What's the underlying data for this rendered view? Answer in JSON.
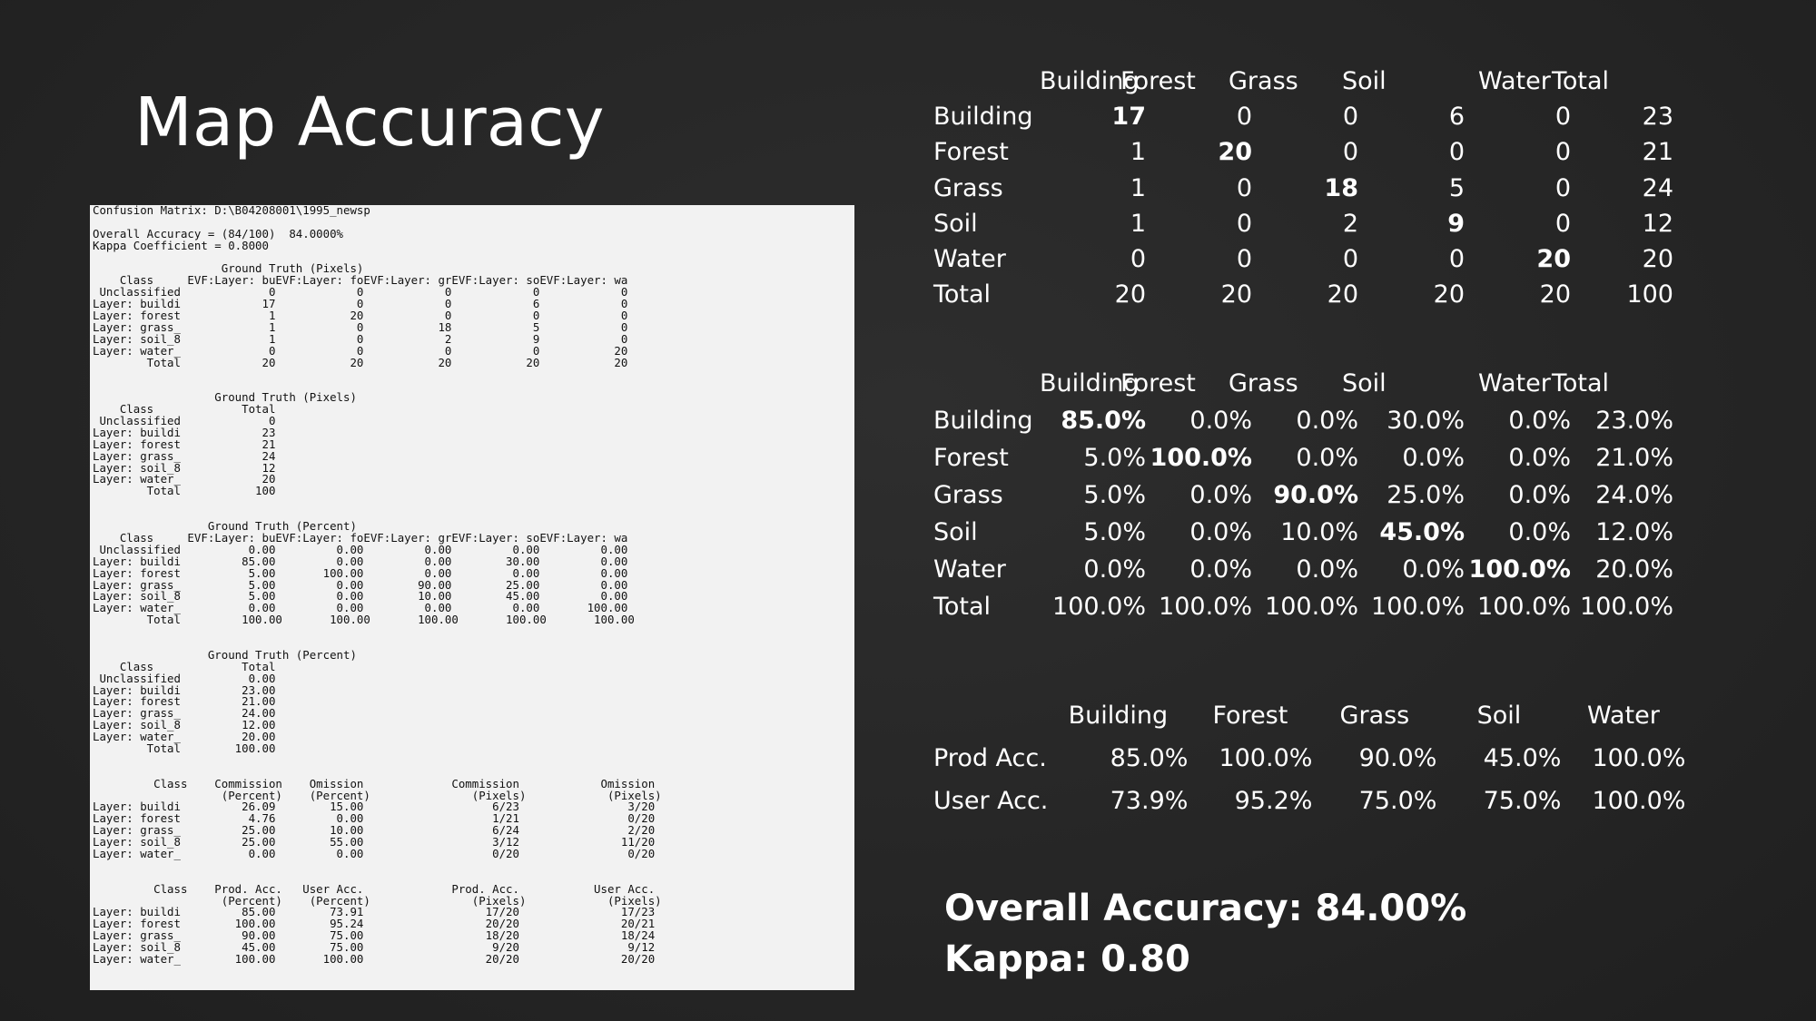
{
  "title": "Map Accuracy",
  "report_lines": [
    "Confusion Matrix: D:\\B04208001\\1995_newsp",
    "",
    "Overall Accuracy = (84/100)  84.0000%",
    "Kappa Coefficient = 0.8000",
    "",
    "                   Ground Truth (Pixels)",
    "    Class     EVF:Layer: buEVF:Layer: foEVF:Layer: grEVF:Layer: soEVF:Layer: wa",
    " Unclassified             0            0            0            0            0",
    "Layer: buildi            17            0            0            6            0",
    "Layer: forest             1           20            0            0            0",
    "Layer: grass_             1            0           18            5            0",
    "Layer: soil_8             1            0            2            9            0",
    "Layer: water_             0            0            0            0           20",
    "        Total            20           20           20           20           20",
    "",
    "",
    "                  Ground Truth (Pixels)",
    "    Class             Total",
    " Unclassified             0",
    "Layer: buildi            23",
    "Layer: forest            21",
    "Layer: grass_            24",
    "Layer: soil_8            12",
    "Layer: water_            20",
    "        Total           100",
    "",
    "",
    "                 Ground Truth (Percent)",
    "    Class     EVF:Layer: buEVF:Layer: foEVF:Layer: grEVF:Layer: soEVF:Layer: wa",
    " Unclassified          0.00         0.00         0.00         0.00         0.00",
    "Layer: buildi         85.00         0.00         0.00        30.00         0.00",
    "Layer: forest          5.00       100.00         0.00         0.00         0.00",
    "Layer: grass_          5.00         0.00        90.00        25.00         0.00",
    "Layer: soil_8          5.00         0.00        10.00        45.00         0.00",
    "Layer: water_          0.00         0.00         0.00         0.00       100.00",
    "        Total         100.00       100.00       100.00       100.00       100.00",
    "",
    "",
    "                 Ground Truth (Percent)",
    "    Class             Total",
    " Unclassified          0.00",
    "Layer: buildi         23.00",
    "Layer: forest         21.00",
    "Layer: grass_         24.00",
    "Layer: soil_8         12.00",
    "Layer: water_         20.00",
    "        Total        100.00",
    "",
    "",
    "         Class    Commission    Omission             Commission            Omission",
    "                   (Percent)    (Percent)               (Pixels)            (Pixels)",
    "Layer: buildi         26.09        15.00                   6/23                3/20",
    "Layer: forest          4.76         0.00                   1/21                0/20",
    "Layer: grass_         25.00        10.00                   6/24                2/20",
    "Layer: soil_8         25.00        55.00                   3/12               11/20",
    "Layer: water_          0.00         0.00                   0/20                0/20",
    "",
    "",
    "         Class    Prod. Acc.   User Acc.             Prod. Acc.           User Acc.",
    "                   (Percent)    (Percent)               (Pixels)            (Pixels)",
    "Layer: buildi         85.00        73.91                  17/20               17/23",
    "Layer: forest        100.00        95.24                  20/20               20/21",
    "Layer: grass_         90.00        75.00                  18/20               18/24",
    "Layer: soil_8         45.00        75.00                   9/20                9/12",
    "Layer: water_        100.00       100.00                  20/20               20/20"
  ],
  "counts_table": {
    "headers": [
      "",
      "Building",
      "Forest",
      "Grass",
      "Soil",
      "Water",
      "Total"
    ],
    "rows": [
      {
        "label": "Building",
        "values": [
          "17",
          "0",
          "0",
          "6",
          "0",
          "23"
        ]
      },
      {
        "label": "Forest",
        "values": [
          "1",
          "20",
          "0",
          "0",
          "0",
          "21"
        ]
      },
      {
        "label": "Grass",
        "values": [
          "1",
          "0",
          "18",
          "5",
          "0",
          "24"
        ]
      },
      {
        "label": "Soil",
        "values": [
          "1",
          "0",
          "2",
          "9",
          "0",
          "12"
        ]
      },
      {
        "label": "Water",
        "values": [
          "0",
          "0",
          "0",
          "0",
          "20",
          "20"
        ]
      },
      {
        "label": "Total",
        "values": [
          "20",
          "20",
          "20",
          "20",
          "20",
          "100"
        ]
      }
    ]
  },
  "percent_table": {
    "headers": [
      "",
      "Building",
      "Forest",
      "Grass",
      "Soil",
      "Water",
      "Total"
    ],
    "rows": [
      {
        "label": "Building",
        "values": [
          "85.0%",
          "0.0%",
          "0.0%",
          "30.0%",
          "0.0%",
          "23.0%"
        ]
      },
      {
        "label": "Forest",
        "values": [
          "5.0%",
          "100.0%",
          "0.0%",
          "0.0%",
          "0.0%",
          "21.0%"
        ]
      },
      {
        "label": "Grass",
        "values": [
          "5.0%",
          "0.0%",
          "90.0%",
          "25.0%",
          "0.0%",
          "24.0%"
        ]
      },
      {
        "label": "Soil",
        "values": [
          "5.0%",
          "0.0%",
          "10.0%",
          "45.0%",
          "0.0%",
          "12.0%"
        ]
      },
      {
        "label": "Water",
        "values": [
          "0.0%",
          "0.0%",
          "0.0%",
          "0.0%",
          "100.0%",
          "20.0%"
        ]
      },
      {
        "label": "Total",
        "values": [
          "100.0%",
          "100.0%",
          "100.0%",
          "100.0%",
          "100.0%",
          "100.0%"
        ]
      }
    ]
  },
  "accuracy_table": {
    "headers": [
      "",
      "Building",
      "Forest",
      "Grass",
      "Soil",
      "Water"
    ],
    "rows": [
      {
        "label": "Prod Acc.",
        "values": [
          "85.0%",
          "100.0%",
          "90.0%",
          "45.0%",
          "100.0%"
        ]
      },
      {
        "label": "User Acc.",
        "values": [
          "73.9%",
          "95.2%",
          "75.0%",
          "75.0%",
          "100.0%"
        ]
      }
    ]
  },
  "summary": {
    "overall_accuracy": "Overall Accuracy: 84.00%",
    "kappa": "Kappa: 0.80"
  }
}
